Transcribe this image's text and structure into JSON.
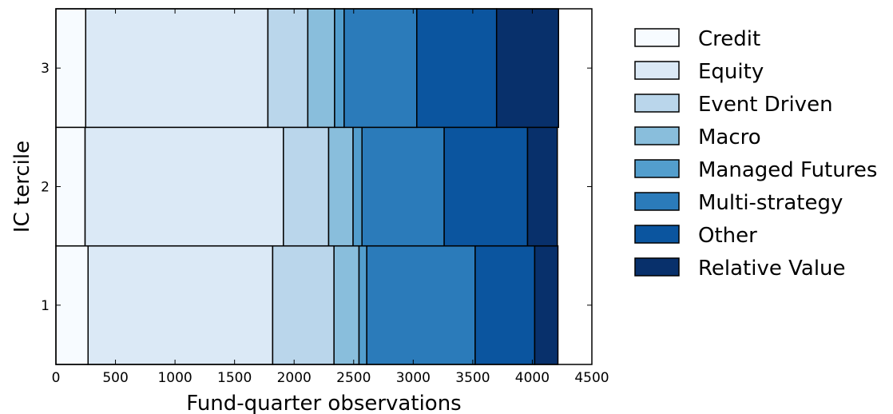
{
  "chart_data": {
    "type": "bar",
    "orientation": "horizontal",
    "stacked": true,
    "xlabel": "Fund-quarter observations",
    "ylabel": "IC tercile",
    "categories": [
      "1",
      "2",
      "3"
    ],
    "xlim": [
      0,
      4500
    ],
    "ylim": [
      0.5,
      3.5
    ],
    "xticks": [
      0,
      500,
      1000,
      1500,
      2000,
      2500,
      3000,
      3500,
      4000,
      4500
    ],
    "yticks": [
      "1",
      "2",
      "3"
    ],
    "grid": false,
    "legend_position": "outside-right",
    "series": [
      {
        "name": "Credit",
        "color": "#f7fbff",
        "values": [
          270,
          245,
          250
        ]
      },
      {
        "name": "Equity",
        "color": "#dbe9f6",
        "values": [
          1550,
          1665,
          1530
        ]
      },
      {
        "name": "Event Driven",
        "color": "#bad6eb",
        "values": [
          515,
          380,
          335
        ]
      },
      {
        "name": "Macro",
        "color": "#89bedc",
        "values": [
          210,
          205,
          225
        ]
      },
      {
        "name": "Managed Futures",
        "color": "#539ecd",
        "values": [
          65,
          75,
          80
        ]
      },
      {
        "name": "Multi-strategy",
        "color": "#2b7bba",
        "values": [
          910,
          690,
          610
        ]
      },
      {
        "name": "Other",
        "color": "#0b559f",
        "values": [
          500,
          700,
          670
        ]
      },
      {
        "name": "Relative Value",
        "color": "#08306b",
        "values": [
          195,
          250,
          520
        ]
      }
    ]
  }
}
